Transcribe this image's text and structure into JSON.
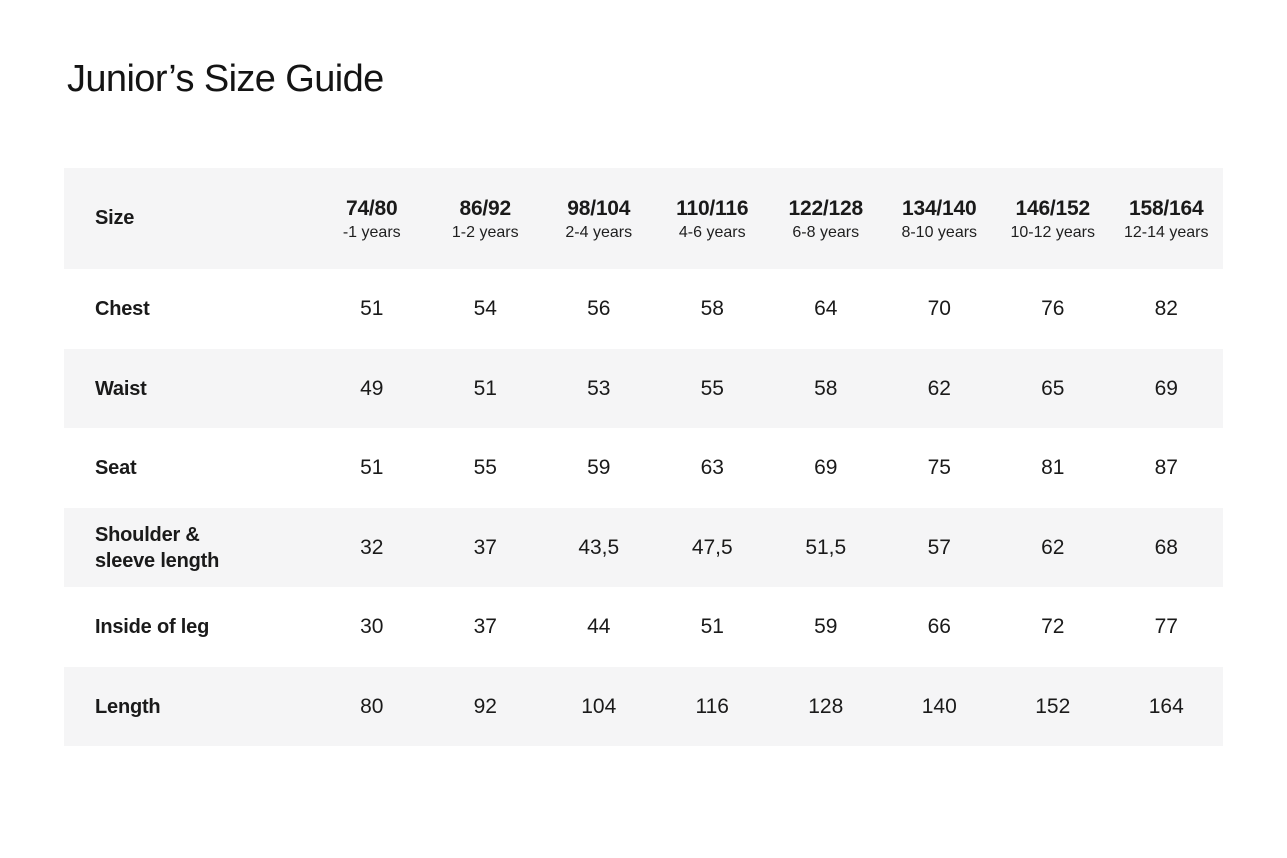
{
  "title": "Junior’s Size Guide",
  "colors": {
    "background": "#ffffff",
    "stripe": "#f5f5f6",
    "text": "#1a1a1a"
  },
  "table": {
    "header_label": "Size",
    "columns": [
      {
        "size": "74/80",
        "age": "-1 years"
      },
      {
        "size": "86/92",
        "age": "1-2 years"
      },
      {
        "size": "98/104",
        "age": "2-4 years"
      },
      {
        "size": "110/116",
        "age": "4-6 years"
      },
      {
        "size": "122/128",
        "age": "6-8 years"
      },
      {
        "size": "134/140",
        "age": "8-10 years"
      },
      {
        "size": "146/152",
        "age": "10-12 years"
      },
      {
        "size": "158/164",
        "age": "12-14 years"
      }
    ],
    "rows": [
      {
        "label": "Chest",
        "values": [
          "51",
          "54",
          "56",
          "58",
          "64",
          "70",
          "76",
          "82"
        ]
      },
      {
        "label": "Waist",
        "values": [
          "49",
          "51",
          "53",
          "55",
          "58",
          "62",
          "65",
          "69"
        ]
      },
      {
        "label": "Seat",
        "values": [
          "51",
          "55",
          "59",
          "63",
          "69",
          "75",
          "81",
          "87"
        ]
      },
      {
        "label": "Shoulder & sleeve length",
        "values": [
          "32",
          "37",
          "43,5",
          "47,5",
          "51,5",
          "57",
          "62",
          "68"
        ]
      },
      {
        "label": "Inside of leg",
        "values": [
          "30",
          "37",
          "44",
          "51",
          "59",
          "66",
          "72",
          "77"
        ]
      },
      {
        "label": "Length",
        "values": [
          "80",
          "92",
          "104",
          "116",
          "128",
          "140",
          "152",
          "164"
        ]
      }
    ]
  }
}
